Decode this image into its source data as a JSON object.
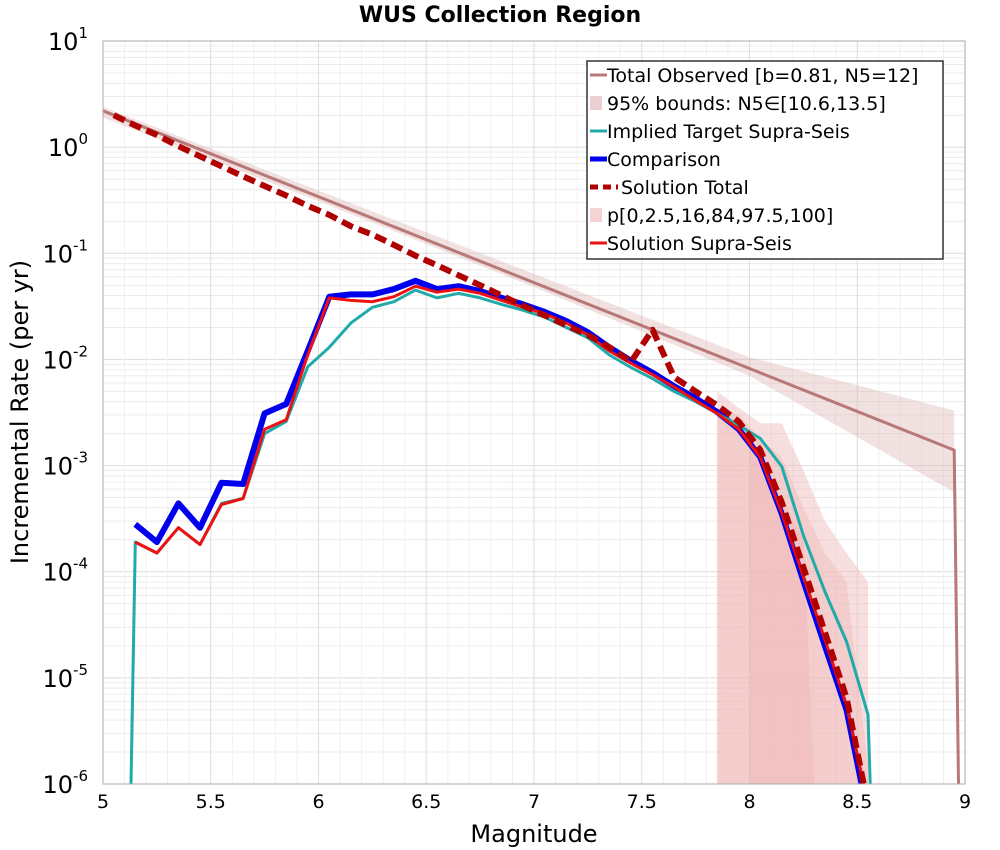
{
  "chart_data": {
    "type": "line",
    "title": "WUS Collection Region",
    "xlabel": "Magnitude",
    "ylabel": "Incremental Rate (per yr)",
    "xlim": [
      5,
      9
    ],
    "ylim": [
      1e-06,
      10
    ],
    "yscale": "log",
    "grid": true,
    "legend_position": "top-right",
    "x_ticks": [
      "5",
      "5.5",
      "6",
      "6.5",
      "7",
      "7.5",
      "8",
      "8.5",
      "9"
    ],
    "y_ticks": [
      {
        "base": "10",
        "exp": "-6"
      },
      {
        "base": "10",
        "exp": "-5"
      },
      {
        "base": "10",
        "exp": "-4"
      },
      {
        "base": "10",
        "exp": "-3"
      },
      {
        "base": "10",
        "exp": "-2"
      },
      {
        "base": "10",
        "exp": "-1"
      },
      {
        "base": "10",
        "exp": "0"
      },
      {
        "base": "10",
        "exp": "1"
      }
    ],
    "bands": [
      {
        "name": "p[0,2.5,16,84,97.5,100]",
        "color": "#f0b8b8",
        "layers": [
          {
            "opacity": 0.45,
            "x": [
              7.85,
              7.95,
              8.05,
              8.15,
              8.25,
              8.35,
              8.45,
              8.55
            ],
            "lower": [
              1e-06,
              1e-06,
              1e-06,
              1e-06,
              1e-06,
              1e-06,
              1e-06,
              1e-06
            ],
            "upper": [
              0.005,
              0.0035,
              0.0025,
              0.0025,
              0.0009,
              0.0003,
              0.00015,
              8e-05
            ]
          },
          {
            "opacity": 0.45,
            "x": [
              7.85,
              7.95,
              8.05,
              8.15,
              8.25,
              8.35,
              8.45,
              8.55
            ],
            "lower": [
              1e-06,
              1e-06,
              1e-06,
              1e-06,
              1e-06,
              1e-06,
              1e-06,
              1e-06
            ],
            "upper": [
              0.0035,
              0.003,
              0.0018,
              0.0012,
              0.0004,
              0.00015,
              8e-05,
              1.5e-06
            ]
          },
          {
            "opacity": 0.5,
            "x": [
              8.0,
              8.05,
              8.15,
              8.25,
              8.3
            ],
            "lower": [
              1e-06,
              1e-06,
              1e-06,
              1e-06,
              1e-06
            ],
            "upper": [
              0.0018,
              0.0012,
              0.0005,
              0.0002,
              1e-06
            ]
          }
        ]
      }
    ],
    "series": [
      {
        "name": "Total Observed [b=0.81, N5=12]",
        "color": "#b87878",
        "width": 3,
        "dash": "",
        "x": [
          5.0,
          8.95,
          8.95,
          8.97
        ],
        "y": [
          2.2,
          0.0014,
          0.0014,
          1e-06
        ],
        "band": {
          "name": "95% bounds: N5∈[10.6,13.5]",
          "color": "#d9a8aa",
          "opacity": 0.35,
          "x": [
            5.0,
            6.0,
            7.0,
            8.0,
            8.95
          ],
          "lower": [
            1.9,
            0.31,
            0.048,
            0.007,
            0.00056
          ],
          "upper": [
            2.4,
            0.39,
            0.064,
            0.0105,
            0.0033
          ]
        }
      },
      {
        "name": "Implied Target Supra-Seis",
        "color": "#20aaaa",
        "width": 3,
        "dash": "",
        "x": [
          5.13,
          5.15,
          5.25,
          5.35,
          5.45,
          5.55,
          5.65,
          5.75,
          5.85,
          5.95,
          6.05,
          6.15,
          6.25,
          6.35,
          6.45,
          6.55,
          6.65,
          6.75,
          6.85,
          6.95,
          7.05,
          7.15,
          7.25,
          7.35,
          7.45,
          7.55,
          7.65,
          7.75,
          7.85,
          7.95,
          8.05,
          8.15,
          8.25,
          8.35,
          8.45,
          8.55,
          8.56
        ],
        "y": [
          1e-06,
          0.00019,
          0.00015,
          0.00026,
          0.00018,
          0.00044,
          0.00049,
          0.002,
          0.0026,
          0.0085,
          0.013,
          0.022,
          0.031,
          0.035,
          0.045,
          0.038,
          0.042,
          0.038,
          0.033,
          0.029,
          0.025,
          0.02,
          0.016,
          0.011,
          0.0084,
          0.0066,
          0.005,
          0.004,
          0.0031,
          0.0024,
          0.0018,
          0.00098,
          0.00022,
          6.5e-05,
          2.2e-05,
          4.5e-06,
          1e-06
        ]
      },
      {
        "name": "Comparison",
        "color": "#0000ee",
        "width": 6,
        "dash": "",
        "x": [
          5.15,
          5.25,
          5.35,
          5.45,
          5.55,
          5.65,
          5.75,
          5.85,
          5.95,
          6.05,
          6.15,
          6.25,
          6.35,
          6.45,
          6.55,
          6.65,
          6.75,
          6.85,
          6.95,
          7.05,
          7.15,
          7.25,
          7.35,
          7.45,
          7.55,
          7.65,
          7.75,
          7.85,
          7.95,
          8.05,
          8.15,
          8.25,
          8.35,
          8.45,
          8.52
        ],
        "y": [
          0.00028,
          0.00019,
          0.00044,
          0.00026,
          0.00069,
          0.00067,
          0.0031,
          0.0038,
          0.012,
          0.039,
          0.041,
          0.041,
          0.046,
          0.055,
          0.046,
          0.049,
          0.044,
          0.038,
          0.033,
          0.028,
          0.023,
          0.018,
          0.013,
          0.0097,
          0.0075,
          0.0056,
          0.0043,
          0.0032,
          0.0022,
          0.0012,
          0.00035,
          8.2e-05,
          2e-05,
          5e-06,
          1e-06
        ]
      },
      {
        "name": "Solution Total",
        "color": "#b00000",
        "width": 6,
        "dash": "12,6",
        "x": [
          5.05,
          5.15,
          5.25,
          5.35,
          5.45,
          5.55,
          5.65,
          5.75,
          5.85,
          5.95,
          6.05,
          6.15,
          6.25,
          6.35,
          6.45,
          6.55,
          6.65,
          6.75,
          6.85,
          6.95,
          7.05,
          7.15,
          7.25,
          7.35,
          7.45,
          7.55,
          7.65,
          7.75,
          7.85,
          7.95,
          8.05,
          8.15,
          8.25,
          8.35,
          8.45,
          8.53
        ],
        "y": [
          2.0,
          1.6,
          1.3,
          1.02,
          0.82,
          0.66,
          0.53,
          0.43,
          0.35,
          0.28,
          0.23,
          0.18,
          0.15,
          0.12,
          0.095,
          0.077,
          0.062,
          0.05,
          0.04,
          0.032,
          0.026,
          0.021,
          0.017,
          0.013,
          0.0095,
          0.019,
          0.0068,
          0.005,
          0.0037,
          0.0026,
          0.0014,
          0.00045,
          0.00011,
          2.7e-05,
          6.5e-06,
          1e-06
        ]
      },
      {
        "name": "Solution Supra-Seis",
        "color": "#ee1111",
        "width": 3,
        "dash": "",
        "x": [
          5.15,
          5.25,
          5.35,
          5.45,
          5.55,
          5.65,
          5.75,
          5.85,
          5.95,
          6.05,
          6.15,
          6.25,
          6.35,
          6.45,
          6.55,
          6.65,
          6.75,
          6.85,
          6.95,
          7.05,
          7.15,
          7.25,
          7.35,
          7.45,
          7.55,
          7.65,
          7.75,
          7.85,
          7.95,
          8.05,
          8.15,
          8.25,
          8.35,
          8.45,
          8.53
        ],
        "y": [
          0.00019,
          0.00015,
          0.00026,
          0.00018,
          0.00043,
          0.00049,
          0.0022,
          0.0027,
          0.011,
          0.038,
          0.036,
          0.035,
          0.039,
          0.049,
          0.043,
          0.046,
          0.042,
          0.036,
          0.031,
          0.027,
          0.022,
          0.017,
          0.012,
          0.0092,
          0.0072,
          0.0055,
          0.0041,
          0.0031,
          0.0022,
          0.0012,
          0.00036,
          9e-05,
          2.3e-05,
          5.5e-06,
          1e-06
        ]
      }
    ],
    "legend_entries": [
      {
        "label": "Total Observed [b=0.81, N5=12]",
        "kind": "line",
        "color": "#b87878",
        "dash": ""
      },
      {
        "label": "95% bounds: N5∈[10.6,13.5]",
        "kind": "patch",
        "color": "#ead0d2",
        "dash": ""
      },
      {
        "label": "Implied Target Supra-Seis",
        "kind": "line",
        "color": "#20aaaa",
        "dash": ""
      },
      {
        "label": "Comparison",
        "kind": "thick",
        "color": "#0000ee",
        "dash": ""
      },
      {
        "label": "Solution Total",
        "kind": "dashed",
        "color": "#b00000",
        "dash": "8,5"
      },
      {
        "label": "p[0,2.5,16,84,97.5,100]",
        "kind": "patch",
        "color": "#f5d3d3",
        "dash": ""
      },
      {
        "label": "Solution Supra-Seis",
        "kind": "line",
        "color": "#ee1111",
        "dash": ""
      }
    ]
  }
}
